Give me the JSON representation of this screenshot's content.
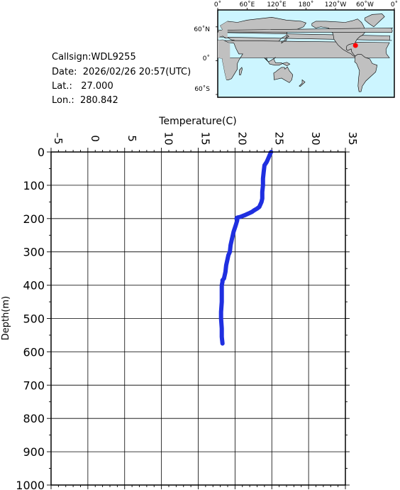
{
  "info": {
    "callsign_label": "Callsign:",
    "callsign": "WDL9255",
    "date_label": "Date:",
    "date": "2026/02/26 20:57(UTC)",
    "lat_label": "Lat.:",
    "lat": "27.000",
    "lon_label": "Lon.:",
    "lon": "280.842"
  },
  "map": {
    "lon_ticks": [
      "0˚",
      "60˚E",
      "120˚E",
      "180˚",
      "120˚W",
      "60˚W",
      "0˚"
    ],
    "lat_ticks": [
      "60˚N",
      "0˚",
      "60˚S"
    ],
    "ocean_color": "#ccf5ff",
    "land_color": "#c0c0c0",
    "marker_color": "#ff0000",
    "marker": {
      "lat": 27.0,
      "lon": 280.842
    }
  },
  "chart_data": {
    "type": "line",
    "xlabel": "Temperature(C)",
    "ylabel": "Depth(m)",
    "xlim": [
      -5,
      35
    ],
    "ylim": [
      1000,
      0
    ],
    "x_ticks": [
      "-5",
      "0",
      "5",
      "10",
      "15",
      "20",
      "25",
      "30",
      "35"
    ],
    "y_ticks": [
      "0",
      "100",
      "200",
      "300",
      "400",
      "500",
      "600",
      "700",
      "800",
      "900",
      "1000"
    ],
    "grid": true,
    "line_color": "#1f2fe0",
    "series": [
      {
        "temperature": [
          24.9,
          24.7,
          24.5,
          24.3,
          24.0,
          23.9,
          23.8,
          23.8,
          23.7,
          23.7,
          23.6,
          23.5,
          23.3,
          23.0,
          22.6,
          22.3,
          21.8,
          21.3,
          20.7,
          20.3,
          20.2,
          20.3,
          20.1,
          19.8,
          19.6,
          19.4,
          19.3,
          19.1,
          19.0,
          18.8,
          18.7,
          18.5,
          18.3,
          18.3,
          18.2,
          18.2,
          18.2,
          18.1,
          18.1,
          18.2,
          18.2,
          18.3
        ],
        "depth": [
          0,
          10,
          20,
          30,
          40,
          60,
          80,
          100,
          120,
          140,
          150,
          155,
          165,
          170,
          175,
          180,
          185,
          190,
          195,
          197,
          200,
          205,
          220,
          240,
          260,
          280,
          300,
          310,
          320,
          340,
          360,
          380,
          385,
          390,
          400,
          420,
          450,
          480,
          500,
          530,
          555,
          575
        ]
      }
    ]
  }
}
